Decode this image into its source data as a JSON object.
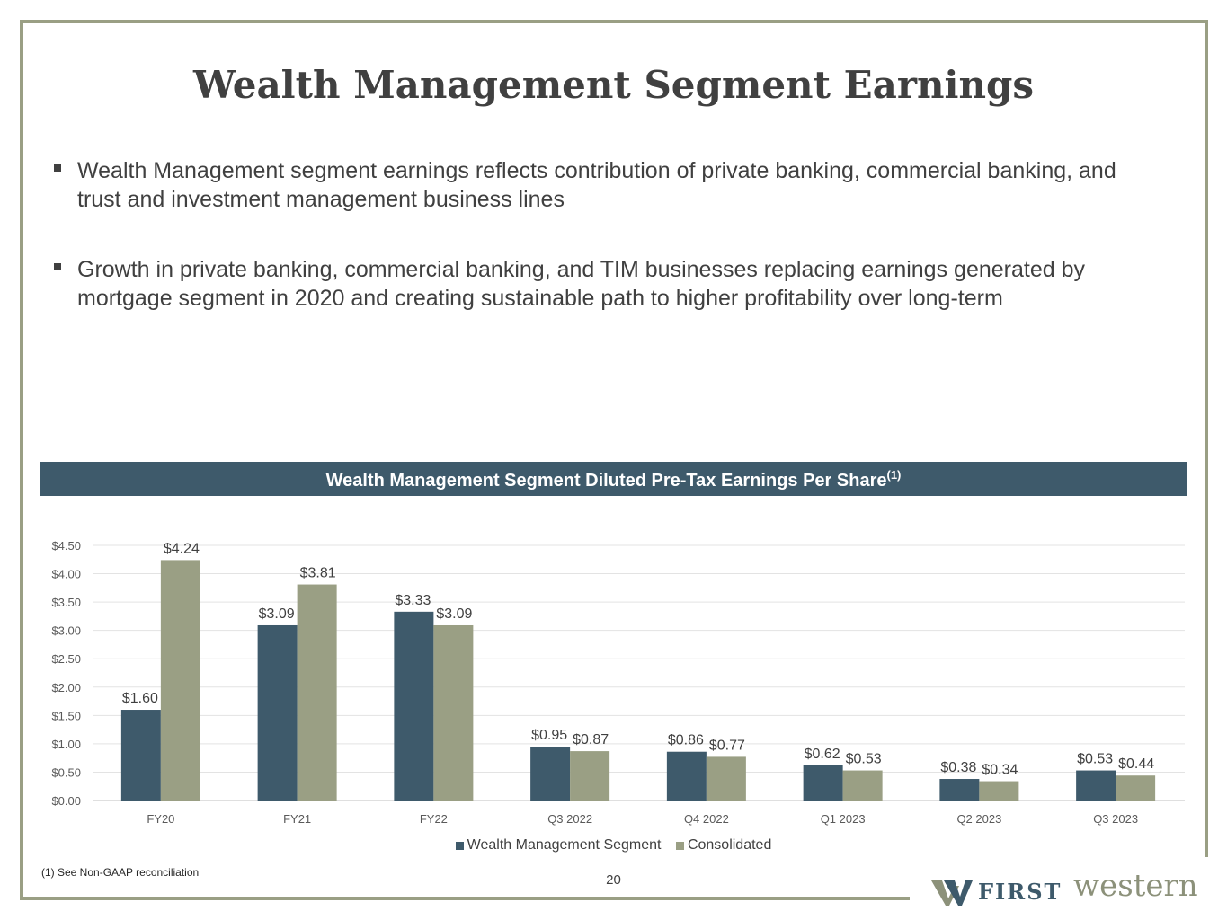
{
  "title": "Wealth Management Segment Earnings",
  "bullets": [
    "Wealth Management segment earnings reflects contribution of private banking, commercial banking, and trust and investment management business lines",
    "Growth in private banking, commercial banking, and TIM businesses replacing earnings generated by mortgage segment in 2020 and creating sustainable path to higher profitability over long-term"
  ],
  "chart_banner": {
    "title": "Wealth Management Segment Diluted Pre-Tax Earnings Per Share",
    "footnote_ref": "(1)"
  },
  "chart_data": {
    "type": "bar",
    "title": "Wealth Management Segment Diluted Pre-Tax Earnings Per Share(1)",
    "categories": [
      "FY20",
      "FY21",
      "FY22",
      "Q3 2022",
      "Q4 2022",
      "Q1 2023",
      "Q2 2023",
      "Q3 2023"
    ],
    "series": [
      {
        "name": "Wealth Management Segment",
        "values": [
          1.6,
          3.09,
          3.33,
          0.95,
          0.86,
          0.62,
          0.38,
          0.53
        ],
        "labels": [
          "$1.60",
          "$3.09",
          "$3.33",
          "$0.95",
          "$0.86",
          "$0.62",
          "$0.38",
          "$0.53"
        ],
        "color": "#3e5a6b"
      },
      {
        "name": "Consolidated",
        "values": [
          4.24,
          3.81,
          3.09,
          0.87,
          0.77,
          0.53,
          0.34,
          0.44
        ],
        "labels": [
          "$4.24",
          "$3.81",
          "$3.09",
          "$0.87",
          "$0.77",
          "$0.53",
          "$0.34",
          "$0.44"
        ],
        "color": "#9a9f84"
      }
    ],
    "y_ticks": [
      "$0.00",
      "$0.50",
      "$1.00",
      "$1.50",
      "$2.00",
      "$2.50",
      "$3.00",
      "$3.50",
      "$4.00",
      "$4.50"
    ],
    "ylim": [
      0,
      4.5
    ],
    "grid": true,
    "legend_position": "bottom"
  },
  "footnote": "(1)  See Non-GAAP reconciliation",
  "page_number": "20",
  "logo": {
    "first": "FIRST",
    "western": "western"
  }
}
